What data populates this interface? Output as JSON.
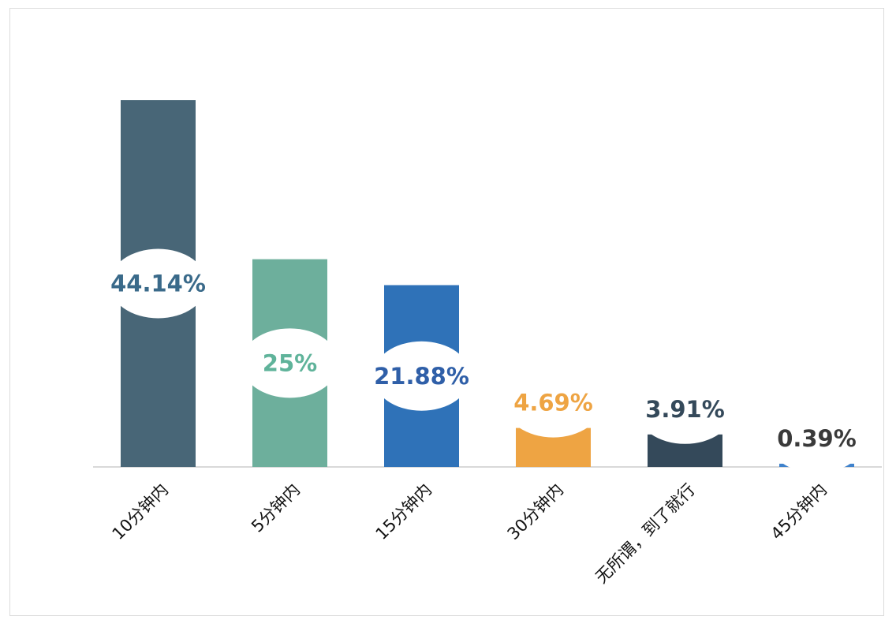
{
  "chart_data": {
    "type": "bar",
    "categories": [
      "10分钟内",
      "5分钟内",
      "15分钟内",
      "30分钟内",
      "无所谓，到了就行",
      "45分钟内"
    ],
    "values": [
      44.14,
      25,
      21.88,
      4.69,
      3.91,
      0.39
    ],
    "data_labels": [
      "44.14%",
      "25%",
      "21.88%",
      "4.69%",
      "3.91%",
      "0.39%"
    ],
    "colors": [
      "#486677",
      "#6daf9c",
      "#2f72b8",
      "#eea443",
      "#34495a",
      "#3f82cc"
    ],
    "label_colors": [
      "#3a6a8a",
      "#5fb39a",
      "#2f5fa8",
      "#eea443",
      "#34495a",
      "#3a3a3a"
    ],
    "ylim": [
      0,
      50
    ],
    "grid": false,
    "legend": "none"
  }
}
